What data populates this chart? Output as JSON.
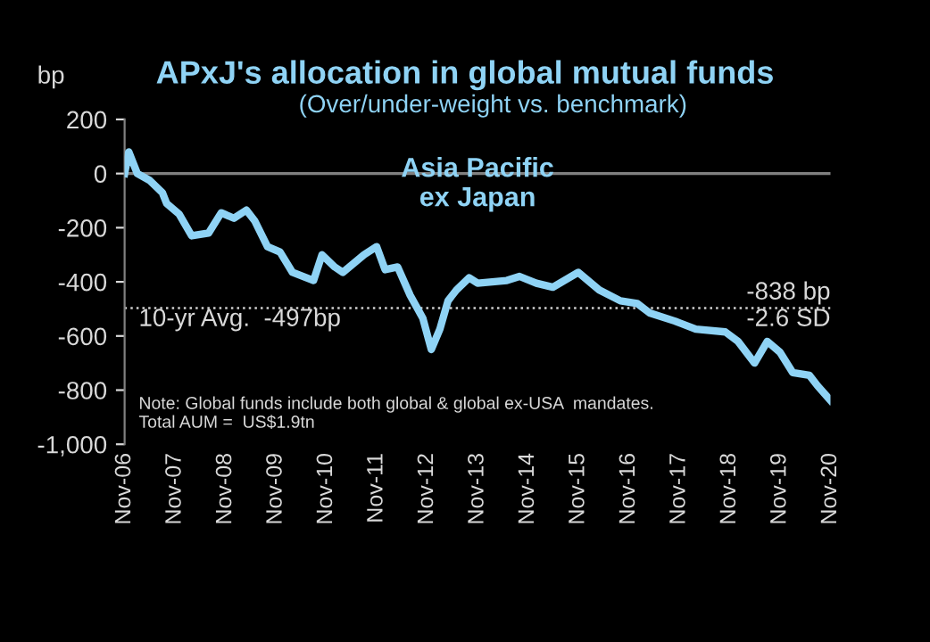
{
  "chart_data": {
    "type": "line",
    "title": "APxJ's allocation in global mutual funds",
    "subtitle": "(Over/under-weight vs. benchmark)",
    "ylabel": "bp",
    "x": [
      "2006-11",
      "2006-12",
      "2007-02",
      "2007-05",
      "2007-08",
      "2007-09",
      "2007-12",
      "2008-03",
      "2008-07",
      "2008-10",
      "2009-01",
      "2009-04",
      "2009-06",
      "2009-09",
      "2009-12",
      "2010-03",
      "2010-08",
      "2010-10",
      "2011-01",
      "2011-03",
      "2011-08",
      "2011-11",
      "2012-01",
      "2012-04",
      "2012-07",
      "2012-10",
      "2012-12",
      "2013-02",
      "2013-04",
      "2013-06",
      "2013-09",
      "2013-11",
      "2014-06",
      "2014-09",
      "2015-01",
      "2015-05",
      "2015-11",
      "2016-04",
      "2016-09",
      "2017-01",
      "2017-04",
      "2017-10",
      "2018-03",
      "2018-10",
      "2019-01",
      "2019-05",
      "2019-08",
      "2019-11",
      "2020-02",
      "2020-06",
      "2020-08",
      "2020-11"
    ],
    "series": [
      {
        "name": "Asia Pacific\nex Japan",
        "color": "#8fd3f5",
        "values": [
          0,
          80,
          0,
          -25,
          -70,
          -110,
          -150,
          -230,
          -220,
          -145,
          -165,
          -135,
          -175,
          -270,
          -290,
          -365,
          -395,
          -300,
          -345,
          -365,
          -300,
          -270,
          -355,
          -345,
          -450,
          -535,
          -650,
          -575,
          -470,
          -430,
          -385,
          -405,
          -395,
          -380,
          -405,
          -420,
          -365,
          -430,
          -470,
          -480,
          -515,
          -545,
          -575,
          -585,
          -620,
          -700,
          -620,
          -660,
          -735,
          -745,
          -785,
          -838
        ]
      }
    ],
    "xlim": [
      "2006-11",
      "2020-11"
    ],
    "xticks": [
      {
        "value": "2006-11",
        "label": "Nov-06"
      },
      {
        "value": "2007-11",
        "label": "Nov-07"
      },
      {
        "value": "2008-11",
        "label": "Nov-08"
      },
      {
        "value": "2009-11",
        "label": "Nov-09"
      },
      {
        "value": "2010-11",
        "label": "Nov-10"
      },
      {
        "value": "2011-11",
        "label": "Nov-11"
      },
      {
        "value": "2012-11",
        "label": "Nov-12"
      },
      {
        "value": "2013-11",
        "label": "Nov-13"
      },
      {
        "value": "2014-11",
        "label": "Nov-14"
      },
      {
        "value": "2015-11",
        "label": "Nov-15"
      },
      {
        "value": "2016-11",
        "label": "Nov-16"
      },
      {
        "value": "2017-11",
        "label": "Nov-17"
      },
      {
        "value": "2018-11",
        "label": "Nov-18"
      },
      {
        "value": "2019-11",
        "label": "Nov-19"
      },
      {
        "value": "2020-11",
        "label": "Nov-20"
      }
    ],
    "ylim": [
      -1000,
      200
    ],
    "yticks": [
      200,
      0,
      -200,
      -400,
      -600,
      -800,
      {
        "value": -1000,
        "label": "-1,000"
      }
    ],
    "ref_lines": [
      {
        "axis": "y",
        "value": 0,
        "color": "#808080",
        "line_style": "solid"
      },
      {
        "axis": "y",
        "value": -497,
        "label": "10-yr Avg.  -497bp",
        "color": "#d0d0d0",
        "line_style": "dotted"
      }
    ],
    "annotations": [
      {
        "text": "-838 bp\n-2.6 SD",
        "x": "2020-11",
        "y": -838
      },
      "Note: Global funds include both global & global ex-USA  mandates.\nTotal AUM =  US$1.9tn"
    ],
    "grid": false,
    "legend": false,
    "marker": "none",
    "line_style": "solid"
  }
}
